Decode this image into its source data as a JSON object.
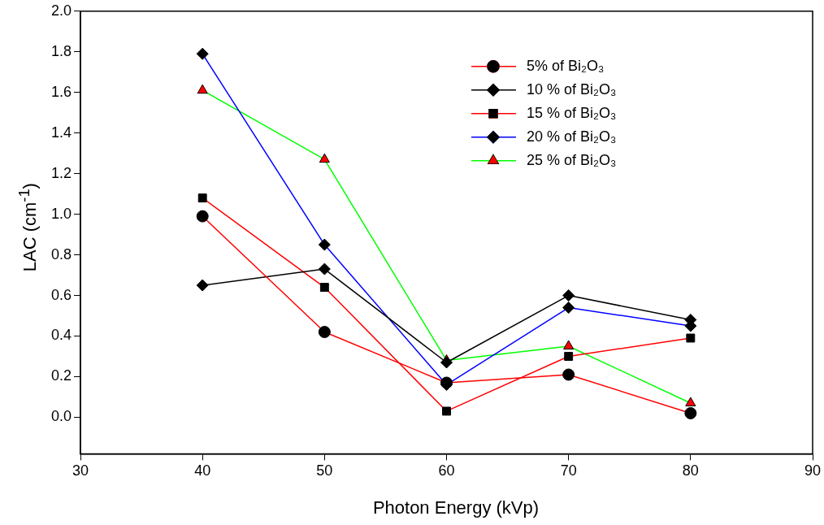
{
  "chart_data": {
    "type": "line",
    "xlabel": "Photon Energy (kVp)",
    "ylabel": "LAC (cm$^{-1}$)",
    "x": [
      40,
      50,
      60,
      70,
      80
    ],
    "series": [
      {
        "name": "5% of Bi₂O₃",
        "color": "#ff0000",
        "marker": "circle",
        "values": [
          0.99,
          0.42,
          0.17,
          0.21,
          0.02
        ]
      },
      {
        "name": "10 % of Bi₂O₃",
        "color": "#000000",
        "marker": "diamond",
        "values": [
          0.65,
          0.73,
          0.27,
          0.6,
          0.48
        ]
      },
      {
        "name": "15 % of Bi₂O₃",
        "color": "#ff0000",
        "marker": "square",
        "values": [
          1.08,
          0.64,
          0.03,
          0.3,
          0.39
        ]
      },
      {
        "name": "20 % of Bi₂O₃",
        "color": "#0000ff",
        "marker": "diamond",
        "values": [
          1.79,
          0.85,
          0.16,
          0.54,
          0.45
        ]
      },
      {
        "name": "25 % of Bi₂O₃",
        "color": "#00ff00",
        "marker": "triangle",
        "values": [
          1.61,
          1.27,
          0.28,
          0.35,
          0.07
        ]
      }
    ],
    "xlim": [
      30,
      90
    ],
    "xticks": [
      30,
      40,
      50,
      60,
      70,
      80,
      90
    ],
    "ylim": [
      -0.18,
      2
    ],
    "yticks": [
      {
        "value": 0,
        "label": "0.0"
      },
      {
        "value": 0.2,
        "label": "0.2"
      },
      {
        "value": 0.4,
        "label": "0.4"
      },
      {
        "value": 0.6,
        "label": "0.6"
      },
      {
        "value": 0.8,
        "label": "0.8"
      },
      {
        "value": 1,
        "label": "1.0"
      },
      {
        "value": 1.2,
        "label": "1.2"
      },
      {
        "value": 1.4,
        "label": "1.4"
      },
      {
        "value": 1.6,
        "label": "1.6"
      },
      {
        "value": 1.8,
        "label": "1.8"
      },
      {
        "value": 2,
        "label": "2.0"
      }
    ],
    "grid": false,
    "legend": "top right",
    "line_style": "solid"
  }
}
